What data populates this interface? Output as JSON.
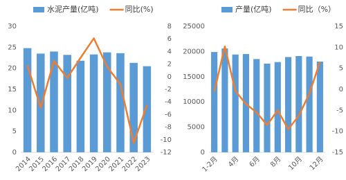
{
  "chart_data": [
    {
      "type": "combo",
      "categories": [
        "2014",
        "2015",
        "2016",
        "2017",
        "2018",
        "2019",
        "2020",
        "2021",
        "2022",
        "2023"
      ],
      "series": [
        {
          "name": "水泥产量(亿吨)",
          "color": "#5b9bd5",
          "type": "bar",
          "values": [
            24.8,
            23.5,
            24.0,
            23.2,
            21.8,
            23.3,
            23.8,
            23.6,
            21.3,
            20.5
          ]
        },
        {
          "name": "同比(%)",
          "color": "#ed7d31",
          "type": "line",
          "axis": "y2",
          "values": [
            1.8,
            -4.9,
            2.5,
            -0.2,
            3.0,
            6.1,
            1.6,
            -1.2,
            -10.5,
            -4.5
          ]
        }
      ],
      "ylim": [
        0,
        30
      ],
      "yticks": [
        0,
        5,
        10,
        15,
        20,
        25,
        30
      ],
      "y2lim": [
        -12,
        8
      ],
      "y2ticks": [
        -12,
        -10,
        -8,
        -6,
        -4,
        -2,
        0,
        2,
        4,
        6,
        8
      ],
      "x_label_rotation": true
    },
    {
      "type": "combo",
      "categories": [
        "1-2月",
        null,
        "4月",
        null,
        "6月",
        null,
        "8月",
        null,
        "10月",
        null,
        "12月"
      ],
      "series": [
        {
          "name": "产量(亿吨)",
          "color": "#5b9bd5",
          "type": "bar",
          "values": [
            19900,
            20600,
            19400,
            19500,
            18500,
            17600,
            17900,
            18900,
            19100,
            19000,
            18000
          ]
        },
        {
          "name": "同比（%）",
          "color": "#ed7d31",
          "type": "line",
          "axis": "y2",
          "values": [
            -0.6,
            10.2,
            -0.4,
            -3.5,
            -5.5,
            -8.5,
            -5.0,
            -9.5,
            -6.3,
            -1.0,
            6.5
          ]
        }
      ],
      "ylim": [
        0,
        25000
      ],
      "yticks": [
        0,
        5000,
        10000,
        15000,
        20000,
        25000
      ],
      "y2lim": [
        -15,
        15
      ],
      "y2ticks": [
        -15,
        -10,
        -5,
        0,
        5,
        10,
        15
      ],
      "x_label_rotation": true
    }
  ]
}
